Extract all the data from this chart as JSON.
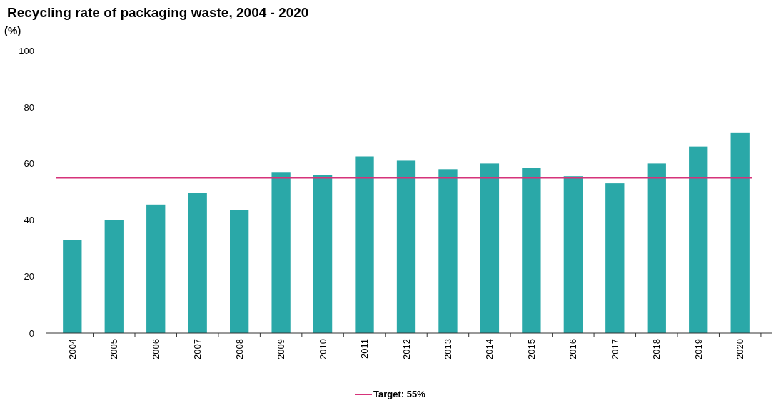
{
  "chart_data": {
    "type": "bar",
    "title": "Recycling rate of packaging waste, 2004 - 2020",
    "ylabel": "(%)",
    "categories": [
      "2004",
      "2005",
      "2006",
      "2007",
      "2008",
      "2009",
      "2010",
      "2011",
      "2012",
      "2013",
      "2014",
      "2015",
      "2016",
      "2017",
      "2018",
      "2019",
      "2020"
    ],
    "values": [
      33,
      40,
      45.5,
      49.5,
      43.5,
      57,
      56,
      62.5,
      61,
      58,
      60,
      58.5,
      55.5,
      53,
      60,
      66,
      71
    ],
    "color": "#2aa8a8",
    "ylim": [
      0,
      100
    ],
    "yticks": [
      0,
      20,
      40,
      60,
      80,
      100
    ],
    "grid": false,
    "legend": "bottom",
    "ref_lines": [
      {
        "axis": "y",
        "value": 55,
        "label": "Target: 55%",
        "color": "#d6337a",
        "line_style": "solid"
      }
    ]
  }
}
